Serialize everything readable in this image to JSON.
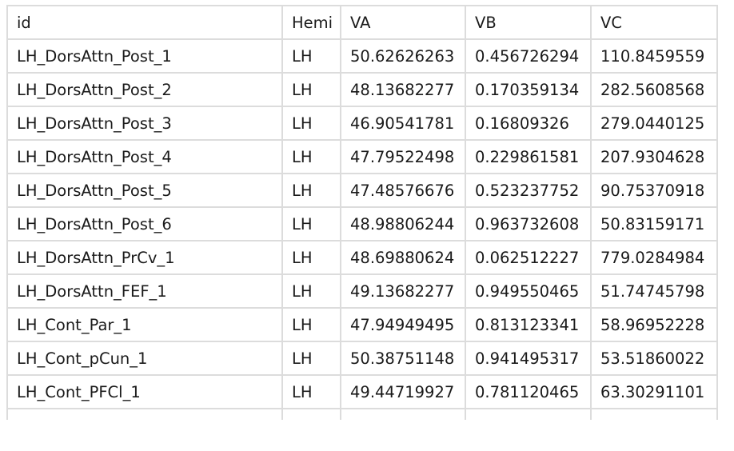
{
  "table": {
    "columns": [
      "id",
      "Hemi",
      "VA",
      "VB",
      "VC"
    ],
    "rows": [
      [
        "LH_DorsAttn_Post_1",
        "LH",
        "50.62626263",
        "0.456726294",
        "110.8459559"
      ],
      [
        "LH_DorsAttn_Post_2",
        "LH",
        "48.13682277",
        "0.170359134",
        "282.5608568"
      ],
      [
        "LH_DorsAttn_Post_3",
        "LH",
        "46.90541781",
        "0.16809326",
        "279.0440125"
      ],
      [
        "LH_DorsAttn_Post_4",
        "LH",
        "47.79522498",
        "0.229861581",
        "207.9304628"
      ],
      [
        "LH_DorsAttn_Post_5",
        "LH",
        "47.48576676",
        "0.523237752",
        "90.75370918"
      ],
      [
        "LH_DorsAttn_Post_6",
        "LH",
        "48.98806244",
        "0.963732608",
        "50.83159171"
      ],
      [
        "LH_DorsAttn_PrCv_1",
        "LH",
        "48.69880624",
        "0.062512227",
        "779.0284984"
      ],
      [
        "LH_DorsAttn_FEF_1",
        "LH",
        "49.13682277",
        "0.949550465",
        "51.74745798"
      ],
      [
        "LH_Cont_Par_1",
        "LH",
        "47.94949495",
        "0.813123341",
        "58.96952228"
      ],
      [
        "LH_Cont_pCun_1",
        "LH",
        "50.38751148",
        "0.941495317",
        "53.51860022"
      ],
      [
        "LH_Cont_PFCl_1",
        "LH",
        "49.44719927",
        "0.781120465",
        "63.30291101"
      ]
    ]
  }
}
